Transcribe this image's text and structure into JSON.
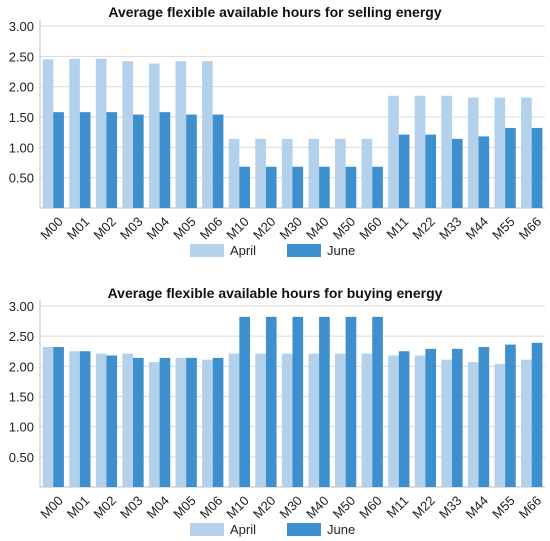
{
  "colors": {
    "april": "#b3d1ea",
    "june": "#3d8fce"
  },
  "chart_data": [
    {
      "type": "bar",
      "title": "Average flexible available hours for selling energy",
      "categories": [
        "M00",
        "M01",
        "M02",
        "M03",
        "M04",
        "M05",
        "M06",
        "M10",
        "M20",
        "M30",
        "M40",
        "M50",
        "M60",
        "M11",
        "M22",
        "M33",
        "M44",
        "M55",
        "M66"
      ],
      "series": [
        {
          "name": "April",
          "values": [
            2.45,
            2.46,
            2.46,
            2.42,
            2.38,
            2.42,
            2.42,
            1.14,
            1.14,
            1.14,
            1.14,
            1.14,
            1.14,
            1.85,
            1.85,
            1.85,
            1.82,
            1.82,
            1.82
          ]
        },
        {
          "name": "June",
          "values": [
            1.58,
            1.58,
            1.58,
            1.54,
            1.58,
            1.54,
            1.54,
            0.68,
            0.68,
            0.68,
            0.68,
            0.68,
            0.68,
            1.21,
            1.21,
            1.14,
            1.18,
            1.32,
            1.32
          ]
        }
      ],
      "yticks": [
        "3.00",
        "2.50",
        "2.00",
        "1.50",
        "1.00",
        "0.50"
      ],
      "ylim": [
        0,
        3
      ],
      "grid": true,
      "legend": "bottom"
    },
    {
      "type": "bar",
      "title": "Average flexible available hours for buying energy",
      "categories": [
        "M00",
        "M01",
        "M02",
        "M03",
        "M04",
        "M05",
        "M06",
        "M10",
        "M20",
        "M30",
        "M40",
        "M50",
        "M60",
        "M11",
        "M22",
        "M33",
        "M44",
        "M55",
        "M66"
      ],
      "series": [
        {
          "name": "April",
          "values": [
            2.32,
            2.25,
            2.21,
            2.21,
            2.07,
            2.14,
            2.11,
            2.21,
            2.21,
            2.21,
            2.21,
            2.21,
            2.21,
            2.18,
            2.18,
            2.11,
            2.07,
            2.04,
            2.11
          ]
        },
        {
          "name": "June",
          "values": [
            2.32,
            2.25,
            2.18,
            2.14,
            2.14,
            2.14,
            2.14,
            2.82,
            2.82,
            2.82,
            2.82,
            2.82,
            2.82,
            2.25,
            2.29,
            2.29,
            2.32,
            2.36,
            2.39
          ]
        }
      ],
      "yticks": [
        "3.00",
        "2.50",
        "2.00",
        "1.50",
        "1.00",
        "0.50"
      ],
      "ylim": [
        0,
        3
      ],
      "grid": true,
      "legend": "bottom"
    }
  ]
}
